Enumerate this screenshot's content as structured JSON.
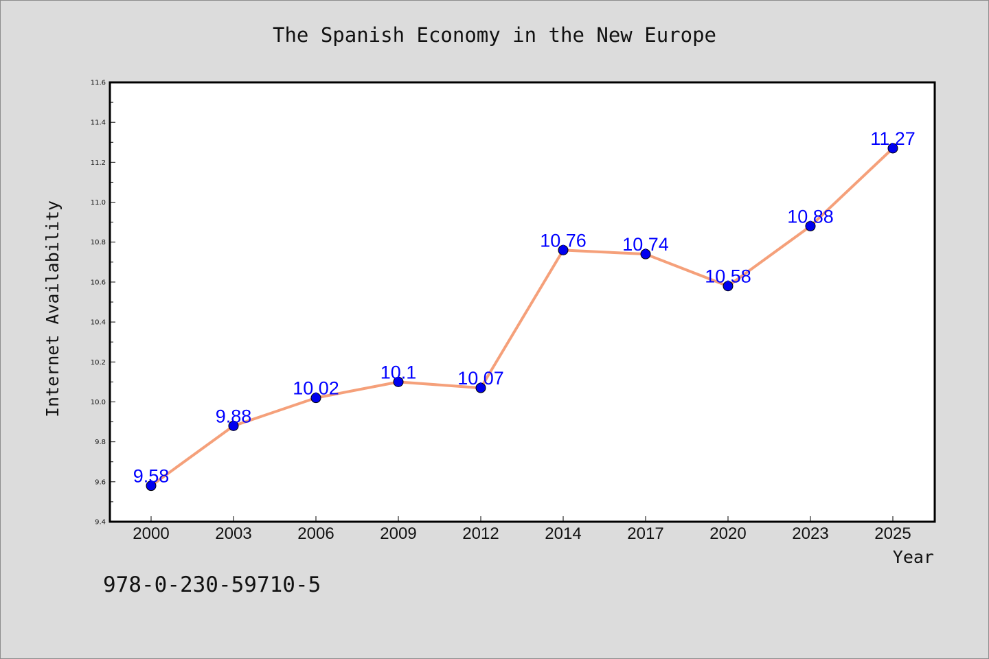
{
  "chart_data": {
    "type": "line",
    "title": "The Spanish Economy in the New Europe",
    "xlabel": "Year",
    "ylabel": "Internet Availability",
    "categories": [
      "2000",
      "2003",
      "2006",
      "2009",
      "2012",
      "2014",
      "2017",
      "2020",
      "2023",
      "2025"
    ],
    "series": [
      {
        "values": [
          9.58,
          9.88,
          10.02,
          10.1,
          10.07,
          10.76,
          10.74,
          10.58,
          10.88,
          11.27
        ],
        "data_labels": [
          "9.58",
          "9.88",
          "10.02",
          "10.1",
          "10.07",
          "10.76",
          "10.74",
          "10.58",
          "10.88",
          "11.27"
        ],
        "line_color": "#f5a07a",
        "marker_color": "#0000ee",
        "label_color": "#0000ff"
      }
    ],
    "ylim": [
      9.4,
      11.6
    ],
    "yticks": [
      "9.4",
      "9.6",
      "9.8",
      "10.0",
      "10.2",
      "10.4",
      "10.6",
      "10.8",
      "11.0",
      "11.2",
      "11.4",
      "11.6"
    ],
    "grid": false,
    "legend": "none"
  },
  "footer": {
    "isbn": "978-0-230-59710-5"
  },
  "colors": {
    "background": "#dcdcdc",
    "plot_background": "#ffffff"
  }
}
